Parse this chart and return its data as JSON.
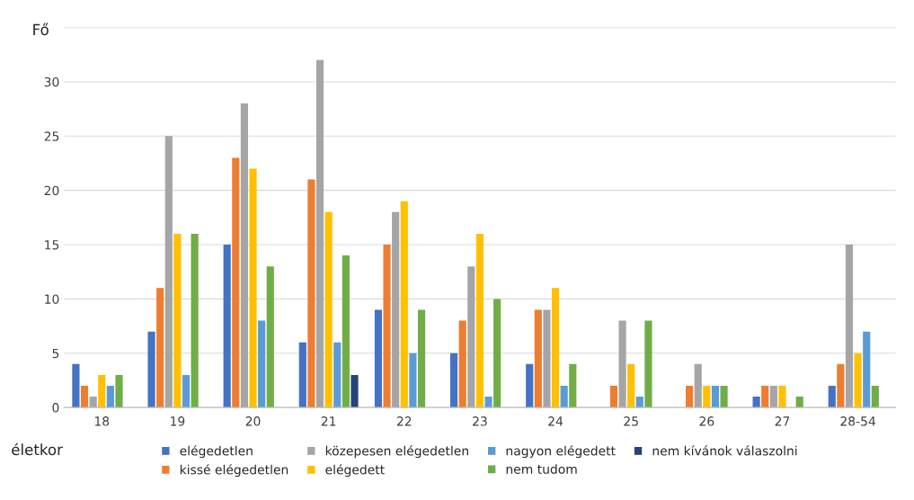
{
  "chart_data": {
    "type": "bar",
    "xlabel": "életkor",
    "ylabel": "Fő",
    "categories": [
      "18",
      "19",
      "20",
      "21",
      "22",
      "23",
      "24",
      "25",
      "26",
      "27",
      "28-54"
    ],
    "series": [
      {
        "name": "elégedetlen",
        "color": "#4472c4",
        "values": [
          4,
          7,
          15,
          6,
          9,
          5,
          4,
          0,
          0,
          1,
          2
        ]
      },
      {
        "name": "kissé elégedetlen",
        "color": "#ed7d31",
        "values": [
          2,
          11,
          23,
          21,
          15,
          8,
          9,
          2,
          2,
          2,
          4
        ]
      },
      {
        "name": "közepesen elégedetlen",
        "color": "#a5a5a5",
        "values": [
          1,
          25,
          28,
          32,
          18,
          13,
          9,
          8,
          4,
          2,
          15
        ]
      },
      {
        "name": "elégedett",
        "color": "#ffc000",
        "values": [
          3,
          16,
          22,
          18,
          19,
          16,
          11,
          4,
          2,
          2,
          5
        ]
      },
      {
        "name": "nagyon elégedett",
        "color": "#5b9bd5",
        "values": [
          2,
          3,
          8,
          6,
          5,
          1,
          2,
          1,
          2,
          0,
          7
        ]
      },
      {
        "name": "nem tudom",
        "color": "#70ad47",
        "values": [
          3,
          16,
          13,
          14,
          9,
          10,
          4,
          8,
          2,
          1,
          2
        ]
      },
      {
        "name": "nem kívánok válaszolni",
        "color": "#264478",
        "values": [
          0,
          0,
          0,
          3,
          0,
          0,
          0,
          0,
          0,
          0,
          0
        ]
      }
    ],
    "ylim": [
      0,
      35
    ],
    "yticks": [
      0,
      5,
      10,
      15,
      20,
      25,
      30,
      {
        "value": 35,
        "label": null
      }
    ],
    "grid": "y",
    "legend": "bottom"
  }
}
